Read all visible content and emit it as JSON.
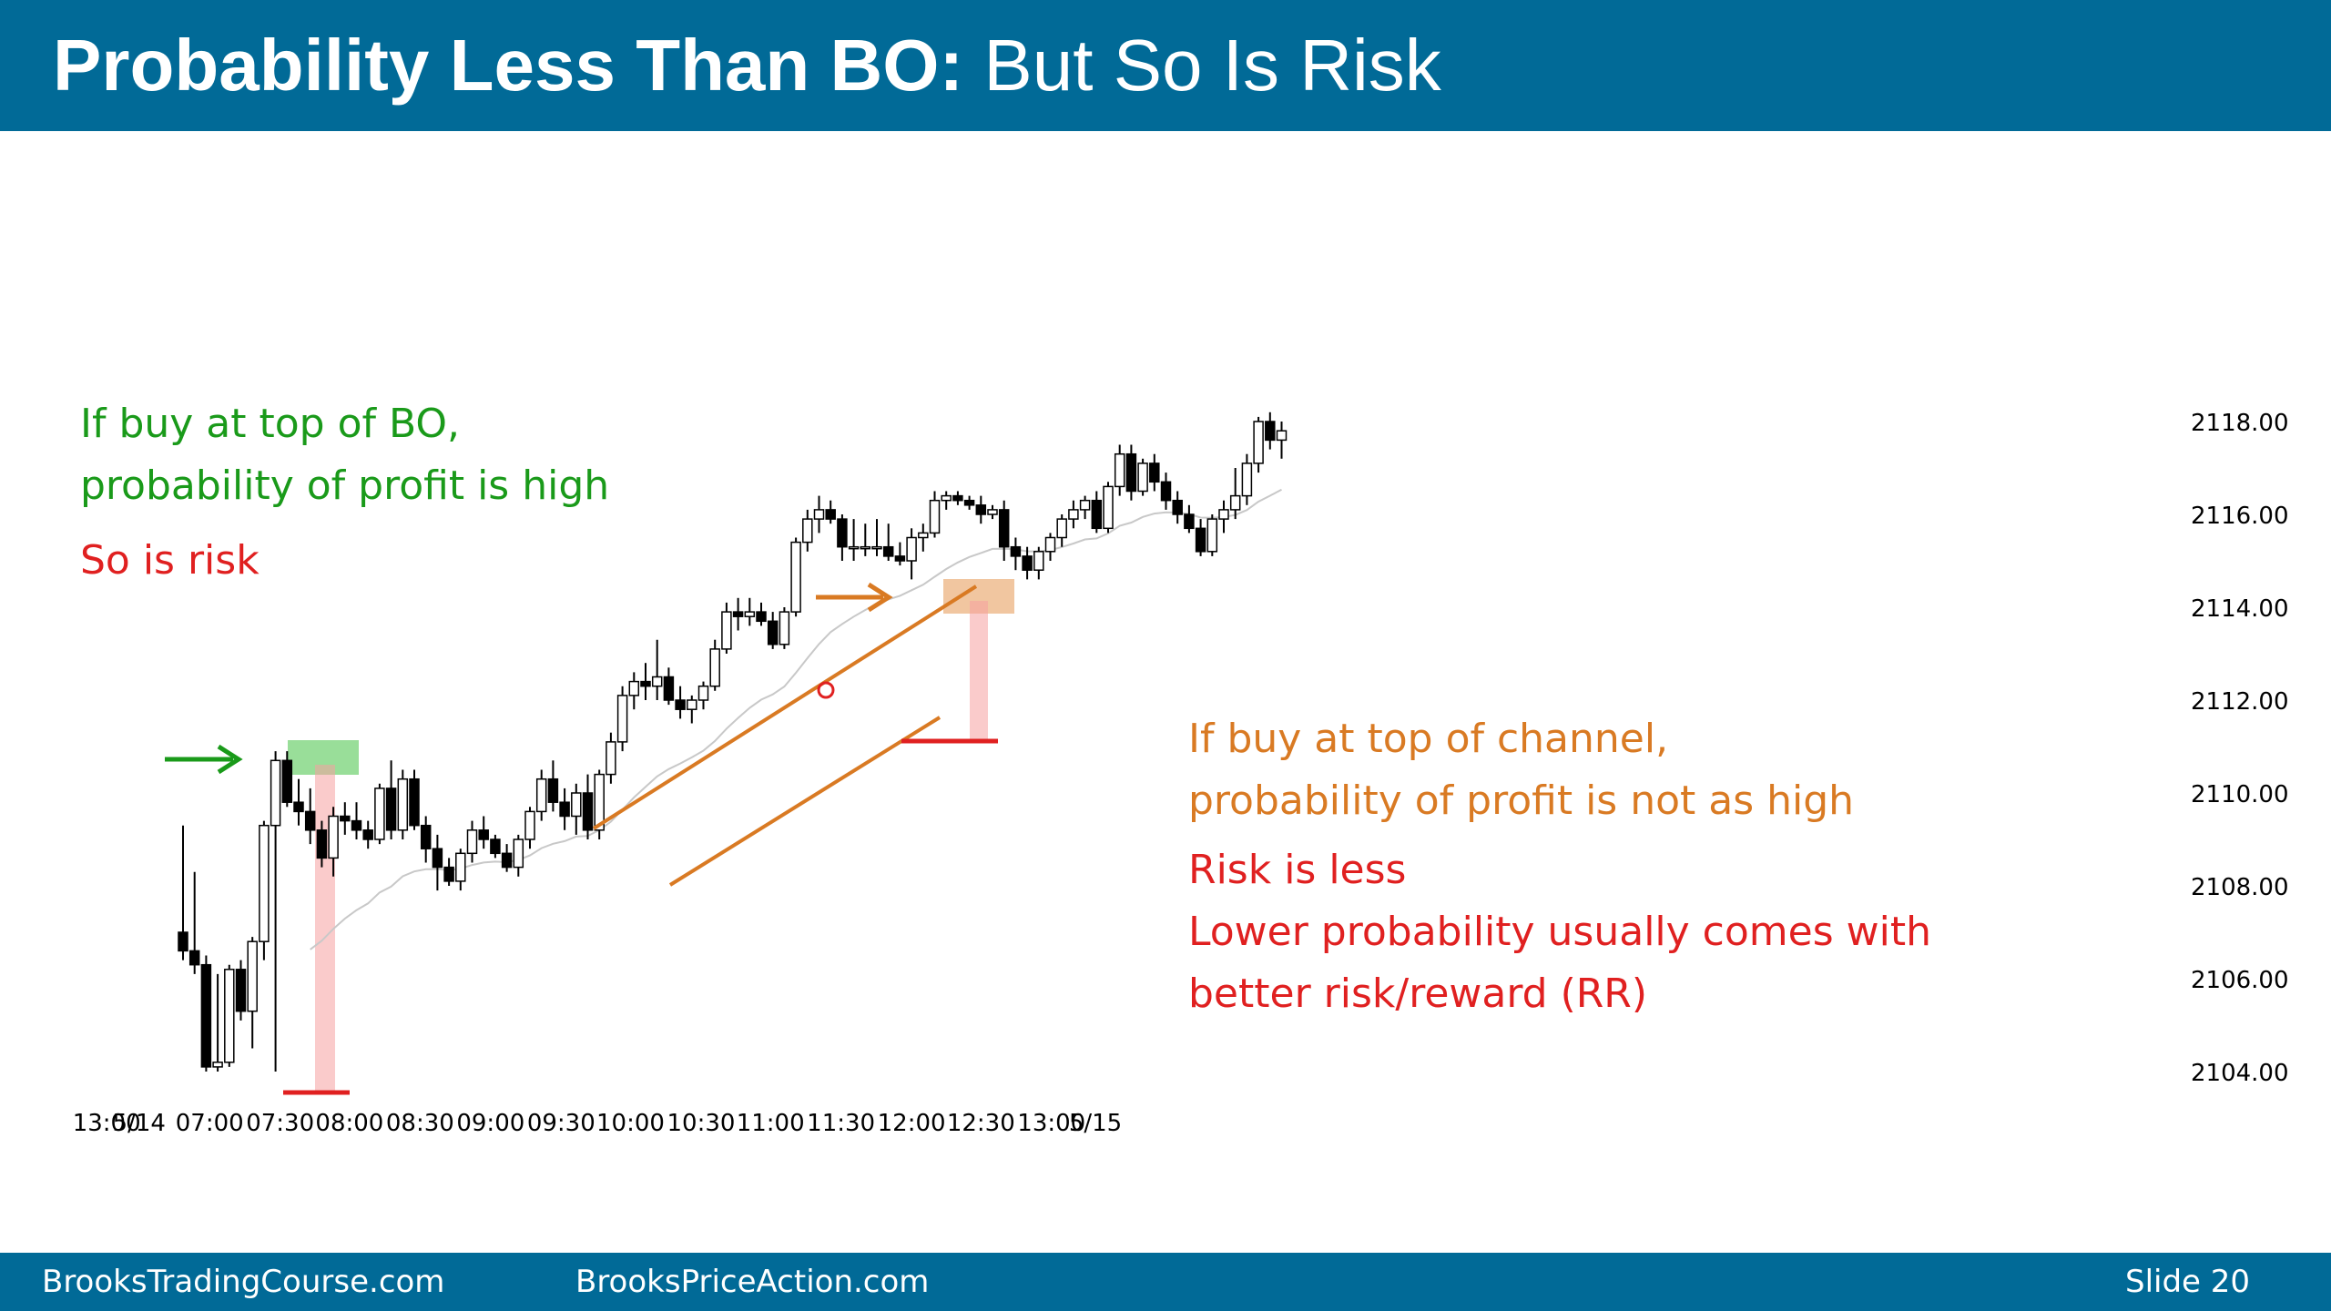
{
  "title": {
    "bold": "Probability Less Than BO:",
    "rest": " But So Is Risk"
  },
  "footer": {
    "left": "BrooksTradingCourse.com",
    "center": "BrooksPriceAction.com",
    "slide": "Slide  20"
  },
  "annotations": {
    "bo_line1": "If buy at top of BO,",
    "bo_line2": "probability of profit is high",
    "bo_risk": "So is risk",
    "ch_line1": "If buy at top of channel,",
    "ch_line2": "probability of profit is not as high",
    "ch_line3": "Risk is less",
    "ch_line4": "Lower probability usually comes with",
    "ch_line5": "better risk/reward (RR)"
  },
  "colors": {
    "green": "#1a9a1a",
    "orange": "#d97a23",
    "red": "#e02020",
    "header": "#016a97",
    "grey_ma": "#c8c8c8"
  },
  "chart_data": {
    "type": "candlestick",
    "ylim": [
      2103.6,
      2118.6
    ],
    "y_ticks": [
      "2118.00",
      "2116.00",
      "2114.00",
      "2112.00",
      "2110.00",
      "2108.00",
      "2106.00",
      "2104.00"
    ],
    "y_tick_values": [
      2118,
      2116,
      2114,
      2112,
      2110,
      2108,
      2106,
      2104
    ],
    "x_tick_labels": [
      "13:00",
      "5/14",
      "07:00",
      "07:30",
      "08:00",
      "08:30",
      "09:00",
      "09:30",
      "10:00",
      "10:30",
      "11:00",
      "11:30",
      "12:00",
      "12:30",
      "13:00",
      "5/15"
    ],
    "x_tick_bars": [
      -6.6,
      -3.8,
      2.3,
      8.4,
      14.4,
      20.5,
      26.6,
      32.7,
      38.7,
      44.8,
      50.8,
      56.9,
      63.0,
      69.0,
      75.1,
      78.9
    ],
    "candles": [
      [
        2107.0,
        2109.3,
        2106.4,
        2106.6
      ],
      [
        2106.6,
        2108.3,
        2106.1,
        2106.3
      ],
      [
        2106.3,
        2106.5,
        2104.0,
        2104.1
      ],
      [
        2104.1,
        2106.1,
        2104.0,
        2104.2
      ],
      [
        2104.2,
        2106.3,
        2104.1,
        2106.2
      ],
      [
        2106.2,
        2106.4,
        2105.1,
        2105.3
      ],
      [
        2105.3,
        2106.9,
        2104.5,
        2106.8
      ],
      [
        2106.8,
        2109.4,
        2106.4,
        2109.3
      ],
      [
        2109.3,
        2110.9,
        2104.0,
        2110.7
      ],
      [
        2110.7,
        2110.9,
        2109.7,
        2109.8
      ],
      [
        2109.8,
        2110.3,
        2109.3,
        2109.6
      ],
      [
        2109.6,
        2110.1,
        2108.9,
        2109.2
      ],
      [
        2109.2,
        2109.4,
        2108.4,
        2108.6
      ],
      [
        2108.6,
        2109.7,
        2108.2,
        2109.5
      ],
      [
        2109.5,
        2109.8,
        2109.1,
        2109.4
      ],
      [
        2109.4,
        2109.8,
        2109.0,
        2109.2
      ],
      [
        2109.2,
        2109.4,
        2108.8,
        2109.0
      ],
      [
        2109.0,
        2110.2,
        2108.9,
        2110.1
      ],
      [
        2110.1,
        2110.7,
        2109.0,
        2109.2
      ],
      [
        2109.2,
        2110.5,
        2109.0,
        2110.3
      ],
      [
        2110.3,
        2110.5,
        2109.2,
        2109.3
      ],
      [
        2109.3,
        2109.5,
        2108.5,
        2108.8
      ],
      [
        2108.8,
        2109.1,
        2107.9,
        2108.4
      ],
      [
        2108.4,
        2108.6,
        2108.0,
        2108.1
      ],
      [
        2108.1,
        2108.8,
        2107.9,
        2108.7
      ],
      [
        2108.7,
        2109.4,
        2108.5,
        2109.2
      ],
      [
        2109.2,
        2109.5,
        2108.8,
        2109.0
      ],
      [
        2109.0,
        2109.1,
        2108.6,
        2108.7
      ],
      [
        2108.7,
        2108.9,
        2108.3,
        2108.4
      ],
      [
        2108.4,
        2109.1,
        2108.2,
        2109.0
      ],
      [
        2109.0,
        2109.7,
        2108.8,
        2109.6
      ],
      [
        2109.6,
        2110.5,
        2109.4,
        2110.3
      ],
      [
        2110.3,
        2110.7,
        2109.6,
        2109.8
      ],
      [
        2109.8,
        2110.1,
        2109.2,
        2109.5
      ],
      [
        2109.5,
        2110.2,
        2109.1,
        2110.0
      ],
      [
        2110.0,
        2110.4,
        2109.0,
        2109.2
      ],
      [
        2109.2,
        2110.5,
        2109.0,
        2110.4
      ],
      [
        2110.4,
        2111.3,
        2110.2,
        2111.1
      ],
      [
        2111.1,
        2112.3,
        2110.9,
        2112.1
      ],
      [
        2112.1,
        2112.6,
        2111.8,
        2112.4
      ],
      [
        2112.4,
        2112.8,
        2112.0,
        2112.3
      ],
      [
        2112.3,
        2113.3,
        2112.0,
        2112.5
      ],
      [
        2112.5,
        2112.7,
        2111.9,
        2112.0
      ],
      [
        2112.0,
        2112.3,
        2111.6,
        2111.8
      ],
      [
        2111.8,
        2112.1,
        2111.5,
        2112.0
      ],
      [
        2112.0,
        2112.4,
        2111.8,
        2112.3
      ],
      [
        2112.3,
        2113.3,
        2112.2,
        2113.1
      ],
      [
        2113.1,
        2114.1,
        2113.0,
        2113.9
      ],
      [
        2113.9,
        2114.2,
        2113.5,
        2113.8
      ],
      [
        2113.8,
        2114.2,
        2113.6,
        2113.9
      ],
      [
        2113.9,
        2114.1,
        2113.6,
        2113.7
      ],
      [
        2113.7,
        2113.9,
        2113.1,
        2113.2
      ],
      [
        2113.2,
        2114.0,
        2113.1,
        2113.9
      ],
      [
        2113.9,
        2115.5,
        2113.8,
        2115.4
      ],
      [
        2115.4,
        2116.1,
        2115.2,
        2115.9
      ],
      [
        2115.9,
        2116.4,
        2115.6,
        2116.1
      ],
      [
        2116.1,
        2116.3,
        2115.8,
        2115.9
      ],
      [
        2115.9,
        2116.0,
        2115.0,
        2115.3
      ],
      [
        2115.3,
        2115.9,
        2115.0,
        2115.3
      ],
      [
        2115.3,
        2115.8,
        2115.1,
        2115.3
      ],
      [
        2115.3,
        2115.9,
        2115.1,
        2115.3
      ],
      [
        2115.3,
        2115.8,
        2115.0,
        2115.1
      ],
      [
        2115.1,
        2115.4,
        2114.9,
        2115.0
      ],
      [
        2115.0,
        2115.7,
        2114.6,
        2115.5
      ],
      [
        2115.5,
        2115.8,
        2115.2,
        2115.6
      ],
      [
        2115.6,
        2116.5,
        2115.5,
        2116.3
      ],
      [
        2116.3,
        2116.5,
        2116.1,
        2116.4
      ],
      [
        2116.4,
        2116.5,
        2116.2,
        2116.3
      ],
      [
        2116.3,
        2116.4,
        2116.1,
        2116.2
      ],
      [
        2116.2,
        2116.4,
        2115.8,
        2116.0
      ],
      [
        2116.0,
        2116.2,
        2115.9,
        2116.1
      ],
      [
        2116.1,
        2116.3,
        2115.0,
        2115.3
      ],
      [
        2115.3,
        2115.5,
        2114.8,
        2115.1
      ],
      [
        2115.1,
        2115.3,
        2114.6,
        2114.8
      ],
      [
        2114.8,
        2115.3,
        2114.6,
        2115.2
      ],
      [
        2115.2,
        2115.6,
        2115.0,
        2115.5
      ],
      [
        2115.5,
        2116.0,
        2115.3,
        2115.9
      ],
      [
        2115.9,
        2116.3,
        2115.7,
        2116.1
      ],
      [
        2116.1,
        2116.4,
        2115.9,
        2116.3
      ],
      [
        2116.3,
        2116.5,
        2115.6,
        2115.7
      ],
      [
        2115.7,
        2116.7,
        2115.6,
        2116.6
      ],
      [
        2116.6,
        2117.5,
        2116.4,
        2117.3
      ],
      [
        2117.3,
        2117.5,
        2116.3,
        2116.5
      ],
      [
        2116.5,
        2117.2,
        2116.4,
        2117.1
      ],
      [
        2117.1,
        2117.3,
        2116.5,
        2116.7
      ],
      [
        2116.7,
        2116.9,
        2116.1,
        2116.3
      ],
      [
        2116.3,
        2116.5,
        2115.8,
        2116.0
      ],
      [
        2116.0,
        2116.2,
        2115.6,
        2115.7
      ],
      [
        2115.7,
        2115.9,
        2115.1,
        2115.2
      ],
      [
        2115.2,
        2116.0,
        2115.1,
        2115.9
      ],
      [
        2115.9,
        2116.3,
        2115.6,
        2116.1
      ],
      [
        2116.1,
        2117.0,
        2115.9,
        2116.4
      ],
      [
        2116.4,
        2117.3,
        2116.2,
        2117.1
      ],
      [
        2117.1,
        2118.1,
        2116.9,
        2118.0
      ],
      [
        2118.0,
        2118.2,
        2117.4,
        2117.6
      ],
      [
        2117.6,
        2118.0,
        2117.2,
        2117.8
      ]
    ]
  }
}
